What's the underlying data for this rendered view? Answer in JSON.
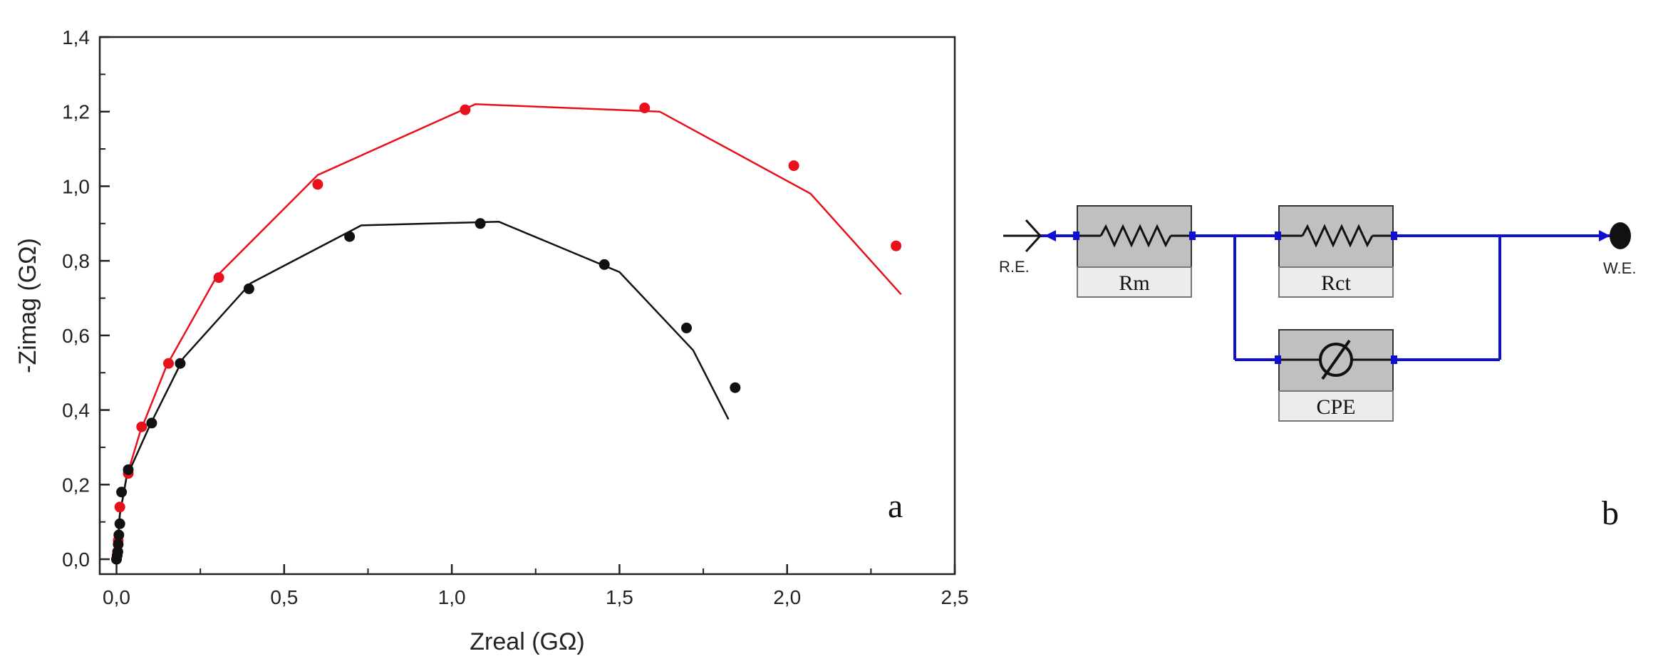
{
  "chart_data": {
    "type": "scatter",
    "xlabel": "Zreal (GΩ)",
    "ylabel": "-Zimag (GΩ)",
    "xlim": [
      -0.05,
      2.5
    ],
    "ylim": [
      -0.04,
      1.4
    ],
    "x_ticks": [
      "0,0",
      "0,5",
      "1,0",
      "1,5",
      "2,0",
      "2,5"
    ],
    "y_ticks": [
      "0,0",
      "0,2",
      "0,4",
      "0,6",
      "0,8",
      "1,0",
      "1,2",
      "1,4"
    ],
    "panel_label": "a",
    "grid": false,
    "series": [
      {
        "color": "#e8101a",
        "points": [
          [
            0.0,
            0.0
          ],
          [
            0.003,
            0.02
          ],
          [
            0.005,
            0.05
          ],
          [
            0.01,
            0.14
          ],
          [
            0.035,
            0.23
          ],
          [
            0.075,
            0.355
          ],
          [
            0.155,
            0.525
          ],
          [
            0.305,
            0.755
          ],
          [
            0.6,
            1.005
          ],
          [
            1.04,
            1.205
          ],
          [
            1.575,
            1.21
          ],
          [
            2.02,
            1.055
          ],
          [
            2.325,
            0.84
          ]
        ],
        "fit": [
          [
            0.0,
            0.0
          ],
          [
            0.01,
            0.12
          ],
          [
            0.03,
            0.22
          ],
          [
            0.07,
            0.34
          ],
          [
            0.15,
            0.52
          ],
          [
            0.3,
            0.76
          ],
          [
            0.6,
            1.03
          ],
          [
            1.07,
            1.22
          ],
          [
            1.62,
            1.2
          ],
          [
            2.07,
            0.98
          ],
          [
            2.34,
            0.71
          ]
        ]
      },
      {
        "color": "#111111",
        "points": [
          [
            0.0,
            0.0
          ],
          [
            0.002,
            0.01
          ],
          [
            0.004,
            0.02
          ],
          [
            0.005,
            0.04
          ],
          [
            0.007,
            0.065
          ],
          [
            0.01,
            0.095
          ],
          [
            0.015,
            0.18
          ],
          [
            0.035,
            0.24
          ],
          [
            0.105,
            0.365
          ],
          [
            0.19,
            0.525
          ],
          [
            0.395,
            0.725
          ],
          [
            0.695,
            0.865
          ],
          [
            1.085,
            0.9
          ],
          [
            1.455,
            0.79
          ],
          [
            1.7,
            0.62
          ],
          [
            1.845,
            0.46
          ]
        ],
        "fit": [
          [
            0.0,
            0.0
          ],
          [
            0.01,
            0.12
          ],
          [
            0.03,
            0.22
          ],
          [
            0.1,
            0.36
          ],
          [
            0.2,
            0.54
          ],
          [
            0.4,
            0.74
          ],
          [
            0.73,
            0.895
          ],
          [
            1.14,
            0.905
          ],
          [
            1.5,
            0.77
          ],
          [
            1.72,
            0.56
          ],
          [
            1.825,
            0.375
          ]
        ]
      }
    ]
  },
  "circuit": {
    "panel_label": "b",
    "ref_electrode_label": "R.E.",
    "work_electrode_label": "W.E.",
    "elements": [
      {
        "label": "Rm",
        "icon": "resistor-icon"
      },
      {
        "label": "Rct",
        "icon": "resistor-icon"
      },
      {
        "label": "CPE",
        "icon": "constant-phase-element-icon"
      }
    ],
    "wire_color": "#1010d0"
  }
}
